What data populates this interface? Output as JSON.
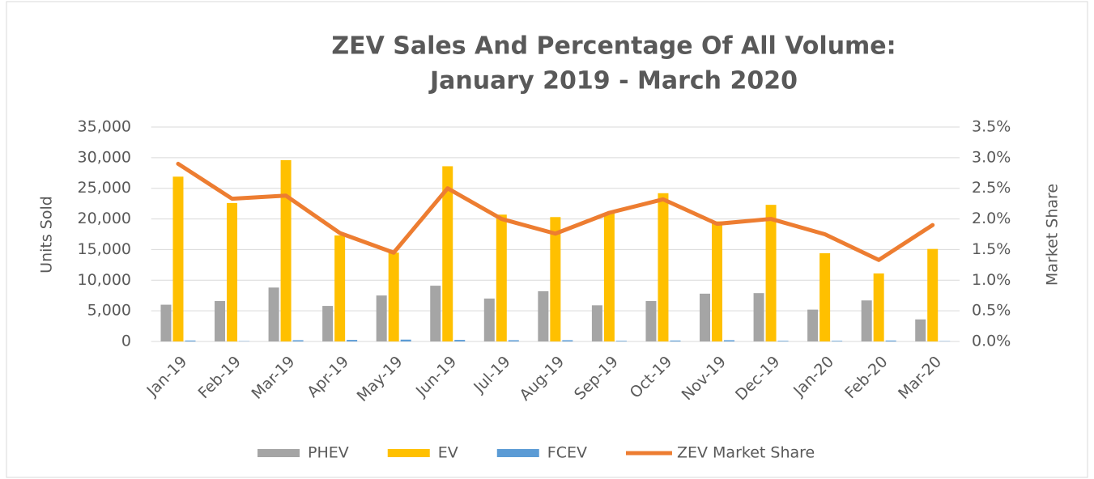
{
  "chart_data": {
    "type": "bar",
    "title": [
      "ZEV Sales And Percentage Of All Volume:",
      "January 2019 - March 2020"
    ],
    "y_label": "Units Sold",
    "y2_label": "Market Share",
    "categories": [
      "Jan-19",
      "Feb-19",
      "Mar-19",
      "Apr-19",
      "May-19",
      "Jun-19",
      "Jul-19",
      "Aug-19",
      "Sep-19",
      "Oct-19",
      "Nov-19",
      "Dec-19",
      "Jan-20",
      "Feb-20",
      "Mar-20"
    ],
    "series": [
      {
        "name": "PHEV",
        "type": "bar",
        "axis": "y",
        "color": "#a5a5a5",
        "values": [
          6000,
          6600,
          8800,
          5800,
          7500,
          9100,
          7000,
          8200,
          5900,
          6600,
          7800,
          7900,
          5200,
          6700,
          3600
        ]
      },
      {
        "name": "EV",
        "type": "bar",
        "axis": "y",
        "color": "#ffc000",
        "values": [
          26900,
          22600,
          29600,
          17300,
          14500,
          28600,
          20700,
          20300,
          21000,
          24200,
          19600,
          22300,
          14400,
          11100,
          15100
        ]
      },
      {
        "name": "FCEV",
        "type": "bar",
        "axis": "y",
        "color": "#5b9bd5",
        "values": [
          150,
          50,
          200,
          250,
          300,
          250,
          200,
          200,
          100,
          150,
          200,
          100,
          100,
          150,
          50
        ]
      },
      {
        "name": "ZEV Market Share",
        "type": "line",
        "axis": "y2",
        "color": "#ed7d31",
        "values": [
          2.9,
          2.33,
          2.38,
          1.77,
          1.45,
          2.5,
          2.0,
          1.76,
          2.1,
          2.32,
          1.92,
          2.0,
          1.75,
          1.33,
          1.9
        ]
      }
    ],
    "ylim": [
      0,
      35000
    ],
    "yticks": [
      0,
      {
        "value": 5000,
        "label": "5,000"
      },
      {
        "value": 10000,
        "label": "10,000"
      },
      {
        "value": 15000,
        "label": "15,000"
      },
      {
        "value": 20000,
        "label": "20,000"
      },
      {
        "value": 25000,
        "label": "25,000"
      },
      {
        "value": 30000,
        "label": "30,000"
      },
      {
        "value": 35000,
        "label": "35,000"
      }
    ],
    "y2lim": [
      0,
      3.5
    ],
    "y2ticks": [
      {
        "value": 0,
        "label": "0.0%"
      },
      {
        "value": 0.5,
        "label": "0.5%"
      },
      {
        "value": 1,
        "label": "1.0%"
      },
      {
        "value": 1.5,
        "label": "1.5%"
      },
      {
        "value": 2,
        "label": "2.0%"
      },
      {
        "value": 2.5,
        "label": "2.5%"
      },
      {
        "value": 3,
        "label": "3.0%"
      },
      {
        "value": 3.5,
        "label": "3.5%"
      }
    ],
    "grid": true,
    "legend": "bottom"
  }
}
